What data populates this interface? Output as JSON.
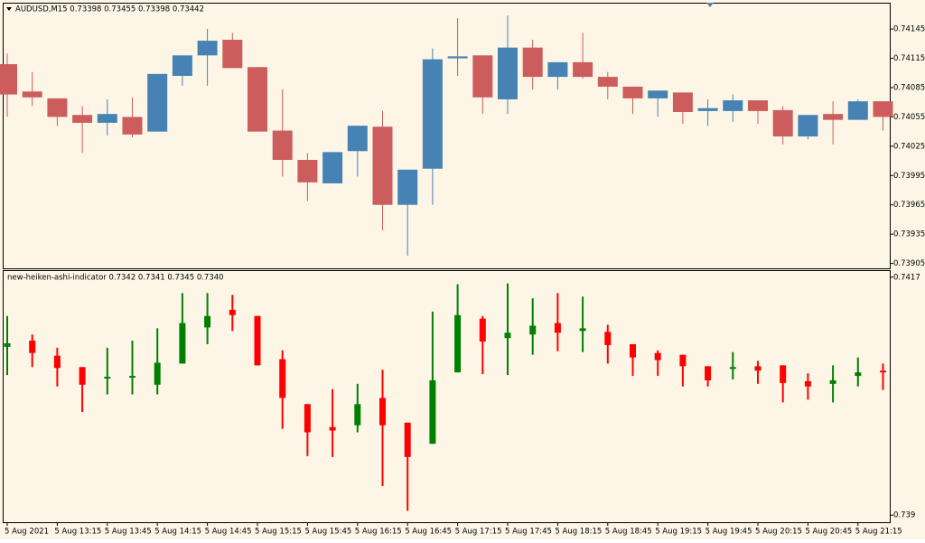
{
  "chart_data": [
    {
      "type": "candlestick",
      "title": "AUDUSD,M15  0.73398 0.73455 0.73398 0.73442",
      "up_color": "#4682b4",
      "down_color": "#cd5c5c",
      "ylim": [
        0.739,
        0.74171
      ],
      "yticks": [
        0.74145,
        0.74115,
        0.74085,
        0.74055,
        0.74025,
        0.73995,
        0.73965,
        0.73935,
        0.73905
      ],
      "open": [
        0.74109,
        0.74081,
        0.74074,
        0.74057,
        0.74049,
        0.74055,
        0.7404,
        0.74097,
        0.74118,
        0.74134,
        0.74106,
        0.74041,
        0.74011,
        0.73987,
        0.7402,
        0.74045,
        0.73965,
        0.74002,
        0.74115,
        0.74118,
        0.74073,
        0.74126,
        0.74096,
        0.74111,
        0.74096,
        0.74086,
        0.74074,
        0.7408,
        0.74061,
        0.74061,
        0.74072,
        0.74062,
        0.74035,
        0.74058,
        0.74052,
        0.74071
      ],
      "high": [
        0.7412,
        0.74101,
        0.74074,
        0.74066,
        0.74073,
        0.74075,
        0.74099,
        0.74118,
        0.74145,
        0.74141,
        0.74106,
        0.74083,
        0.74018,
        0.74019,
        0.74046,
        0.74061,
        0.74001,
        0.74125,
        0.74156,
        0.74118,
        0.74159,
        0.74134,
        0.74111,
        0.74141,
        0.74101,
        0.74086,
        0.74082,
        0.7408,
        0.74073,
        0.74078,
        0.74072,
        0.74066,
        0.74057,
        0.74071,
        0.74073,
        0.74071
      ],
      "low": [
        0.74055,
        0.74066,
        0.74046,
        0.74018,
        0.74036,
        0.74034,
        0.7404,
        0.74087,
        0.74087,
        0.74105,
        0.7404,
        0.73994,
        0.73969,
        0.73987,
        0.73994,
        0.73939,
        0.73913,
        0.73965,
        0.74097,
        0.74058,
        0.74058,
        0.74083,
        0.74083,
        0.74094,
        0.74073,
        0.74058,
        0.74055,
        0.74048,
        0.74046,
        0.7405,
        0.74048,
        0.74027,
        0.74032,
        0.74027,
        0.74052,
        0.74041
      ],
      "close": [
        0.74078,
        0.74075,
        0.74055,
        0.74049,
        0.74058,
        0.74037,
        0.74099,
        0.74118,
        0.74133,
        0.74105,
        0.7404,
        0.74011,
        0.73988,
        0.74019,
        0.74046,
        0.73965,
        0.74001,
        0.74114,
        0.74117,
        0.74075,
        0.74126,
        0.74096,
        0.74111,
        0.74096,
        0.74086,
        0.74074,
        0.74082,
        0.7406,
        0.74064,
        0.74072,
        0.74061,
        0.74035,
        0.74057,
        0.74052,
        0.74071,
        0.74055
      ]
    },
    {
      "type": "candlestick",
      "title": "new-heiken-ashi-indicator 0.7342 0.7341 0.7345 0.7340",
      "up_color": "#008000",
      "down_color": "#ff0000",
      "ylim": [
        0.73892,
        0.74177
      ],
      "yticks": [
        0.7417,
        0.739
      ],
      "categories": [
        "5 Aug 2021",
        null,
        "5 Aug 13:15",
        null,
        "5 Aug 13:45",
        null,
        "5 Aug 14:15",
        null,
        "5 Aug 14:45",
        null,
        "5 Aug 15:15",
        null,
        "5 Aug 15:45",
        null,
        "5 Aug 16:15",
        null,
        "5 Aug 16:45",
        null,
        "5 Aug 17:15",
        null,
        "5 Aug 17:45",
        null,
        "5 Aug 18:15",
        null,
        "5 Aug 18:45",
        null,
        "5 Aug 19:15",
        null,
        "5 Aug 19:45",
        null,
        "5 Aug 20:15",
        null,
        "5 Aug 20:45",
        null,
        "5 Aug 21:15",
        null
      ],
      "open": [
        0.74091,
        0.74098,
        0.74081,
        0.74068,
        0.74055,
        0.74056,
        0.74048,
        0.74072,
        0.74113,
        0.74133,
        0.74126,
        0.74077,
        0.74026,
        0.74,
        0.74002,
        0.74033,
        0.74005,
        0.73981,
        0.74062,
        0.74123,
        0.74101,
        0.74105,
        0.74118,
        0.74109,
        0.74108,
        0.74094,
        0.74084,
        0.74082,
        0.74069,
        0.74066,
        0.74069,
        0.7407,
        0.74052,
        0.74049,
        0.74058,
        0.74064
      ],
      "high": [
        0.74126,
        0.74105,
        0.7409,
        0.74068,
        0.7409,
        0.74098,
        0.74112,
        0.74152,
        0.74152,
        0.7415,
        0.74126,
        0.74087,
        0.74026,
        0.74043,
        0.74049,
        0.74065,
        0.74005,
        0.74131,
        0.74162,
        0.74126,
        0.74163,
        0.74146,
        0.74152,
        0.74148,
        0.74116,
        0.74094,
        0.74087,
        0.74082,
        0.74069,
        0.74085,
        0.74075,
        0.7407,
        0.74061,
        0.7407,
        0.74079,
        0.74072
      ],
      "low": [
        0.74059,
        0.74068,
        0.74046,
        0.74017,
        0.74037,
        0.74037,
        0.74037,
        0.74072,
        0.74094,
        0.74109,
        0.7407,
        0.73998,
        0.73967,
        0.73966,
        0.73994,
        0.73933,
        0.73905,
        0.73981,
        0.74062,
        0.7406,
        0.74059,
        0.74082,
        0.74086,
        0.74085,
        0.74072,
        0.74058,
        0.74058,
        0.74046,
        0.74046,
        0.74054,
        0.74049,
        0.74028,
        0.74031,
        0.74028,
        0.74046,
        0.74042
      ],
      "close": [
        0.74095,
        0.74084,
        0.74067,
        0.74048,
        0.74057,
        0.74058,
        0.74073,
        0.74118,
        0.74126,
        0.74127,
        0.7407,
        0.74033,
        0.73994,
        0.73996,
        0.74026,
        0.74002,
        0.73966,
        0.74053,
        0.74127,
        0.74097,
        0.74107,
        0.74115,
        0.74107,
        0.74112,
        0.74093,
        0.74079,
        0.74076,
        0.74069,
        0.74053,
        0.74068,
        0.74064,
        0.7405,
        0.74046,
        0.74053,
        0.74062,
        0.74062
      ]
    }
  ]
}
